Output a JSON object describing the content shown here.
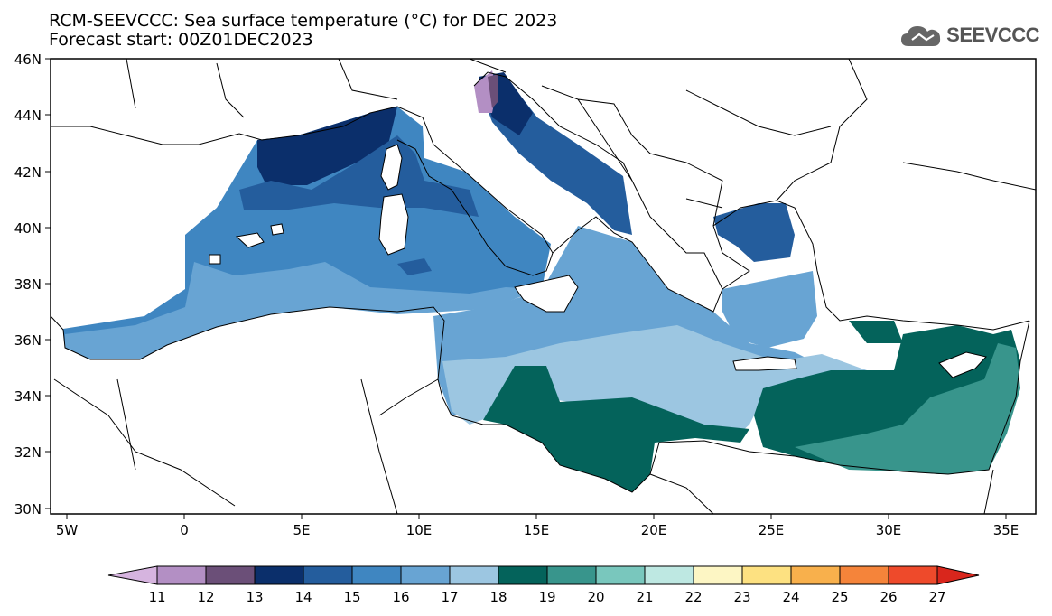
{
  "header": {
    "title": "RCM-SEEVCCC: Sea surface temperature (°C) for DEC 2023",
    "subtitle": "Forecast start: 00Z01DEC2023",
    "logo_text": "SEEVCCC",
    "logo_icon": "cloud-icon"
  },
  "map": {
    "lon_ticks": [
      "5W",
      "0",
      "5E",
      "10E",
      "15E",
      "20E",
      "25E",
      "30E",
      "35E"
    ],
    "lat_ticks": [
      "46N",
      "44N",
      "42N",
      "40N",
      "38N",
      "36N",
      "34N",
      "32N",
      "30N"
    ],
    "lon_range": [
      -6,
      36
    ],
    "lat_range": [
      29.8,
      46
    ],
    "land_color": "#ffffff"
  },
  "colorbar": {
    "labels": [
      "11",
      "12",
      "13",
      "14",
      "15",
      "16",
      "17",
      "18",
      "19",
      "20",
      "21",
      "22",
      "23",
      "24",
      "25",
      "26",
      "27"
    ],
    "colors": [
      "#d6b4df",
      "#b38fc4",
      "#6b4f78",
      "#0b2f6b",
      "#245d9d",
      "#3f86c1",
      "#68a4d3",
      "#9cc6e1",
      "#04635b",
      "#38958c",
      "#79c7bd",
      "#bee8e2",
      "#fdf6c4",
      "#fde181",
      "#f8b04c",
      "#f5843a",
      "#ee4a2b",
      "#d9261c"
    ]
  }
}
